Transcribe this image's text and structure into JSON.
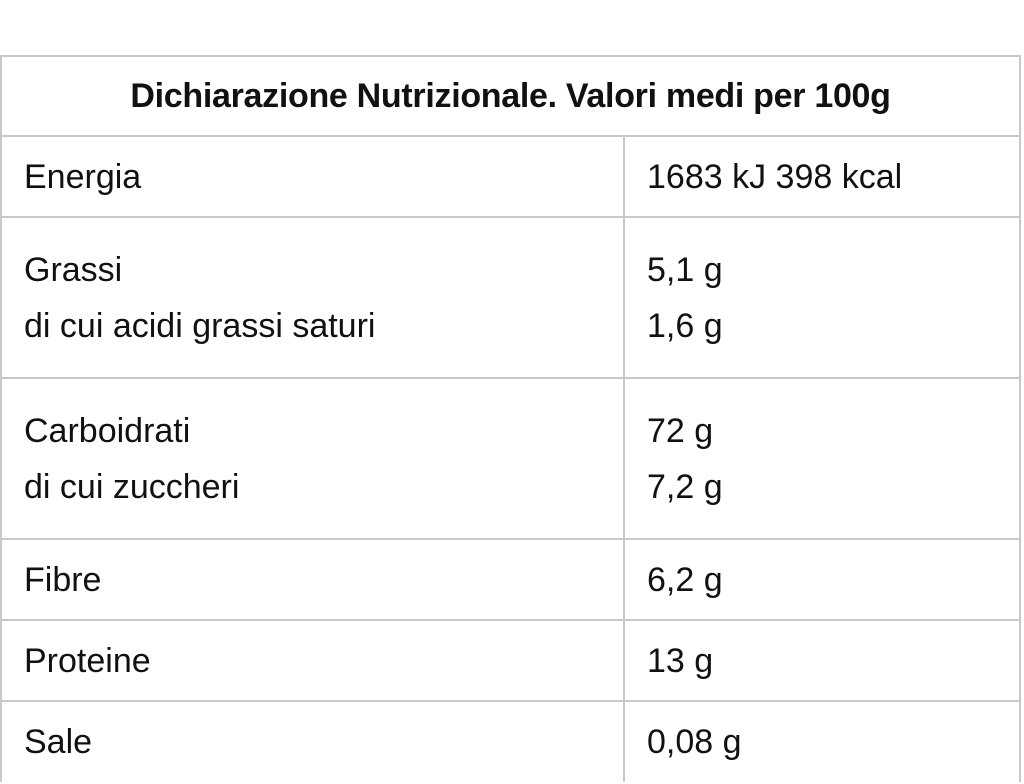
{
  "table": {
    "title": "Dichiarazione Nutrizionale. Valori medi per 100g",
    "rows": [
      {
        "name": "Energia",
        "value": "1683 kJ 398 kcal"
      },
      {
        "name": "Grassi",
        "value": "5,1 g",
        "sub_name": "di cui acidi grassi saturi",
        "sub_value": "1,6 g"
      },
      {
        "name": "Carboidrati",
        "value": "72 g",
        "sub_name": "di cui zuccheri",
        "sub_value": "7,2 g"
      },
      {
        "name": "Fibre",
        "value": "6,2 g"
      },
      {
        "name": "Proteine",
        "value": "13 g"
      },
      {
        "name": "Sale",
        "value": "0,08 g"
      }
    ]
  }
}
